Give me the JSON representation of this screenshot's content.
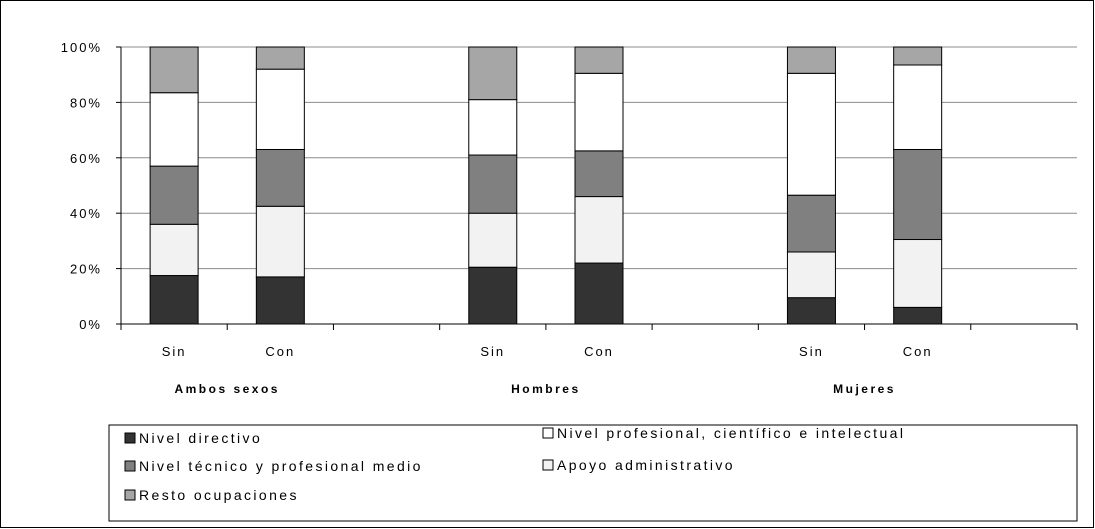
{
  "chart_data": {
    "type": "bar",
    "stacked": true,
    "normalized": true,
    "groups": [
      "Ambos sexos",
      "Hombres",
      "Mujeres"
    ],
    "categories": [
      "Sin",
      "Con",
      "Sin",
      "Con",
      "Sin",
      "Con"
    ],
    "category_group": [
      0,
      0,
      1,
      1,
      2,
      2
    ],
    "ylim": [
      0,
      100
    ],
    "yticks": [
      "0%",
      "20%",
      "40%",
      "60%",
      "80%",
      "100%"
    ],
    "grid": true,
    "legend_position": "bottom",
    "series": [
      {
        "name": "Nivel directivo",
        "color": "#333333",
        "values": [
          17.5,
          17,
          20.5,
          22,
          9.5,
          6
        ]
      },
      {
        "name": "Nivel técnico y profesional medio",
        "color": "#808080",
        "values": [
          21,
          20.5,
          21,
          16.5,
          20.5,
          32.5
        ]
      },
      {
        "name": "Resto ocupaciones",
        "color": "#a6a6a6",
        "values": [
          16.5,
          8,
          19,
          9.5,
          9.5,
          6.5
        ]
      },
      {
        "name": "Nivel profesional, científico e intelectual",
        "color": "#ffffff",
        "values": [
          26.5,
          29,
          20,
          28,
          44,
          30.5
        ]
      },
      {
        "name": "Apoyo administrativo",
        "color": "#f2f2f2",
        "values": [
          18.5,
          25.5,
          19.5,
          24,
          16.5,
          24.5
        ]
      }
    ],
    "stack_order": [
      0,
      4,
      1,
      3,
      2
    ],
    "legend_order": [
      0,
      3,
      1,
      4,
      2
    ]
  }
}
